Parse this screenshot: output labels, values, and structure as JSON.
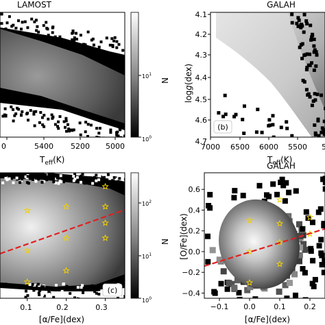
{
  "figure": {
    "description": "Four-panel figure of LAMOST and GALAH stellar density distributions"
  },
  "chart_data": [
    {
      "id": "panel-a",
      "type": "heatmap",
      "title": "LAMOST",
      "panel_label": "",
      "xlabel": "T_eff(K)",
      "ylabel": "",
      "x_ticks": [
        "5400",
        "5200",
        "5000"
      ],
      "y_ticks": [],
      "xlim": [
        5650,
        4920
      ],
      "colorbar": {
        "label": "N",
        "scale": "log",
        "ticks": [
          "10^0",
          "10^1"
        ]
      }
    },
    {
      "id": "panel-b",
      "type": "heatmap",
      "title": "GALAH",
      "panel_label": "(b)",
      "xlabel": "T_eff(K)",
      "ylabel": "log g(dex)",
      "x_ticks": [
        "7000",
        "6500",
        "6000",
        "5500",
        "5"
      ],
      "y_ticks": [
        "4.1",
        "4.2",
        "4.3",
        "4.4",
        "4.5",
        "4.6",
        "4.7"
      ],
      "xlim": [
        7000,
        5000
      ],
      "ylim": [
        4.7,
        4.08
      ]
    },
    {
      "id": "panel-c",
      "type": "heatmap",
      "title": "",
      "panel_label": "(c)",
      "xlabel": "[α/Fe](dex)",
      "ylabel": "",
      "x_ticks": [
        "0.1",
        "0.2",
        "0.3"
      ],
      "y_ticks": [],
      "xlim": [
        0.03,
        0.35
      ],
      "colorbar": {
        "label": "N",
        "scale": "log",
        "ticks": [
          "10^0",
          "10^1",
          "10^2"
        ]
      },
      "fit_line": {
        "color": "#e02020",
        "style": "dashed"
      },
      "star_markers": [
        {
          "x": 0.1,
          "row": 0.3
        },
        {
          "x": 0.1,
          "row": 0.62
        },
        {
          "x": 0.1,
          "row": 0.87
        },
        {
          "x": 0.2,
          "row": 0.27
        },
        {
          "x": 0.2,
          "row": 0.52
        },
        {
          "x": 0.2,
          "row": 0.78
        },
        {
          "x": 0.3,
          "row": 0.11
        },
        {
          "x": 0.3,
          "row": 0.27
        },
        {
          "x": 0.3,
          "row": 0.4
        },
        {
          "x": 0.3,
          "row": 0.52
        }
      ]
    },
    {
      "id": "panel-d",
      "type": "heatmap",
      "title": "GALAH",
      "panel_label": "",
      "xlabel": "[α/Fe](dex)",
      "ylabel": "[O/Fe](dex)",
      "x_ticks": [
        "−0.1",
        "0.0",
        "0.1",
        "0.2"
      ],
      "y_ticks": [
        "0.6",
        "0.4",
        "0.2",
        "0.0",
        "−0.2",
        "−0.4"
      ],
      "x_tick_values": [
        -0.1,
        0.0,
        0.1,
        0.2
      ],
      "y_tick_values": [
        0.6,
        0.4,
        0.2,
        0.0,
        -0.2,
        -0.4
      ],
      "xlim": [
        -0.15,
        0.25
      ],
      "ylim": [
        -0.45,
        0.76
      ],
      "fit_line": {
        "color": "#e02020",
        "style": "dashed",
        "points": [
          [
            -0.15,
            -0.14
          ],
          [
            0.25,
            0.22
          ]
        ]
      },
      "star_markers": [
        {
          "x": 0.0,
          "y": 0.3
        },
        {
          "x": 0.0,
          "y": 0.0
        },
        {
          "x": 0.0,
          "y": -0.3
        },
        {
          "x": 0.1,
          "y": 0.5
        },
        {
          "x": 0.1,
          "y": 0.27
        },
        {
          "x": 0.1,
          "y": 0.09
        },
        {
          "x": 0.1,
          "y": -0.12
        },
        {
          "x": 0.2,
          "y": 0.17
        },
        {
          "x": 0.2,
          "y": 0.33
        }
      ]
    }
  ]
}
